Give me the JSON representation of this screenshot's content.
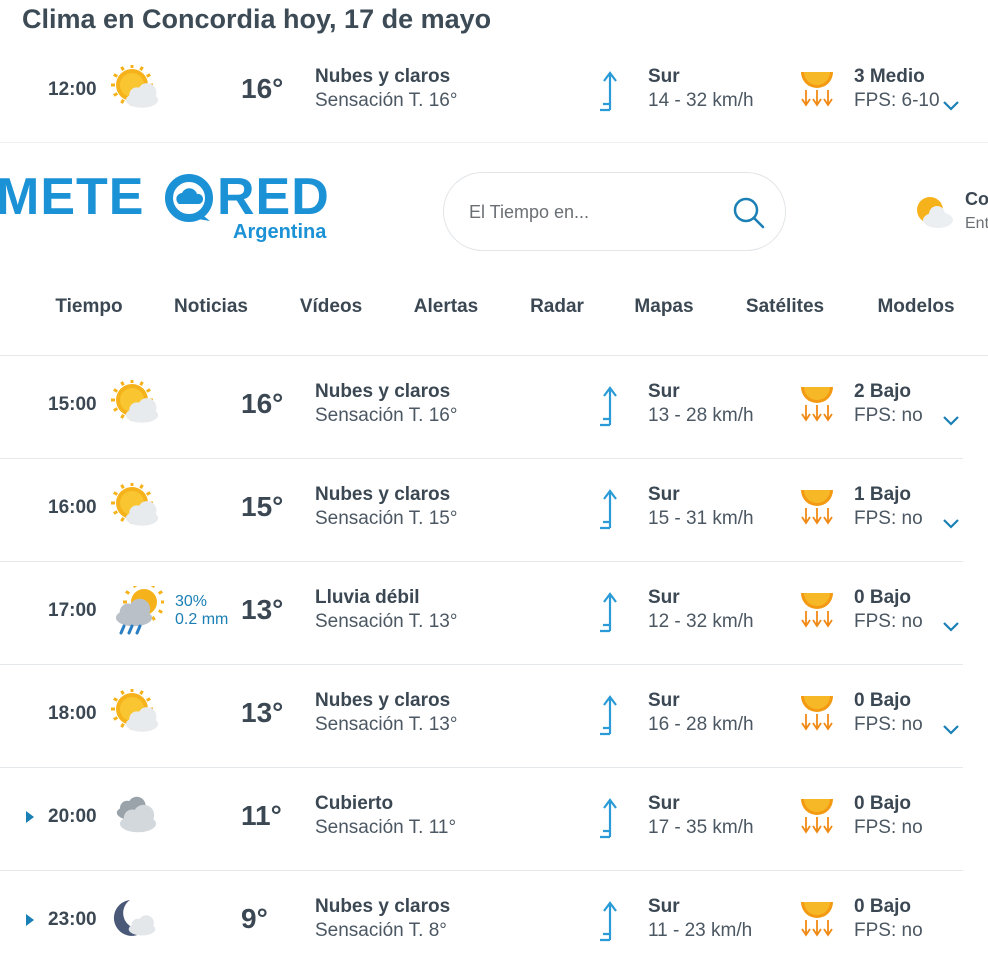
{
  "title": "Clima en Concordia hoy, 17 de mayo",
  "header": {
    "logo_left": "METE",
    "logo_right": "RED",
    "logo_sub": "Argentina",
    "search_placeholder": "El Tiempo en...",
    "side_title": "Co",
    "side_sub": "Ent"
  },
  "nav": [
    "Tiempo",
    "Noticias",
    "Vídeos",
    "Alertas",
    "Radar",
    "Mapas",
    "Satélites",
    "Modelos"
  ],
  "rows": [
    {
      "time": "12:00",
      "icon": "sun-cloud",
      "temp": "16°",
      "desc": "Nubes y claros",
      "feels": "Sensación T. 16°",
      "wind_dir": "Sur",
      "wind": "14 - 32 km/h",
      "uv": "3 Medio",
      "fps": "FPS: 6-10",
      "toggle": "chevron"
    },
    {
      "time": "15:00",
      "icon": "sun-cloud",
      "temp": "16°",
      "desc": "Nubes y claros",
      "feels": "Sensación T. 16°",
      "wind_dir": "Sur",
      "wind": "13 - 28 km/h",
      "uv": "2 Bajo",
      "fps": "FPS: no",
      "toggle": "chevron"
    },
    {
      "time": "16:00",
      "icon": "sun-cloud",
      "temp": "15°",
      "desc": "Nubes y claros",
      "feels": "Sensación T. 15°",
      "wind_dir": "Sur",
      "wind": "15 - 31 km/h",
      "uv": "1 Bajo",
      "fps": "FPS: no",
      "toggle": "chevron"
    },
    {
      "time": "17:00",
      "icon": "rain",
      "precip_prob": "30%",
      "precip": "0.2 mm",
      "temp": "13°",
      "desc": "Lluvia débil",
      "feels": "Sensación T. 13°",
      "wind_dir": "Sur",
      "wind": "12 - 32 km/h",
      "uv": "0 Bajo",
      "fps": "FPS: no",
      "toggle": "chevron"
    },
    {
      "time": "18:00",
      "icon": "sun-cloud",
      "temp": "13°",
      "desc": "Nubes y claros",
      "feels": "Sensación T. 13°",
      "wind_dir": "Sur",
      "wind": "16 - 28 km/h",
      "uv": "0 Bajo",
      "fps": "FPS: no",
      "toggle": "chevron"
    },
    {
      "time": "20:00",
      "icon": "cloud",
      "temp": "11°",
      "desc": "Cubierto",
      "feels": "Sensación T. 11°",
      "wind_dir": "Sur",
      "wind": "17 - 35 km/h",
      "uv": "0 Bajo",
      "fps": "FPS: no",
      "toggle": "arrow"
    },
    {
      "time": "23:00",
      "icon": "moon",
      "temp": "9°",
      "desc": "Nubes y claros",
      "feels": "Sensación T. 8°",
      "wind_dir": "Sur",
      "wind": "11 - 23 km/h",
      "uv": "0 Bajo",
      "fps": "FPS: no",
      "toggle": "arrow"
    }
  ]
}
